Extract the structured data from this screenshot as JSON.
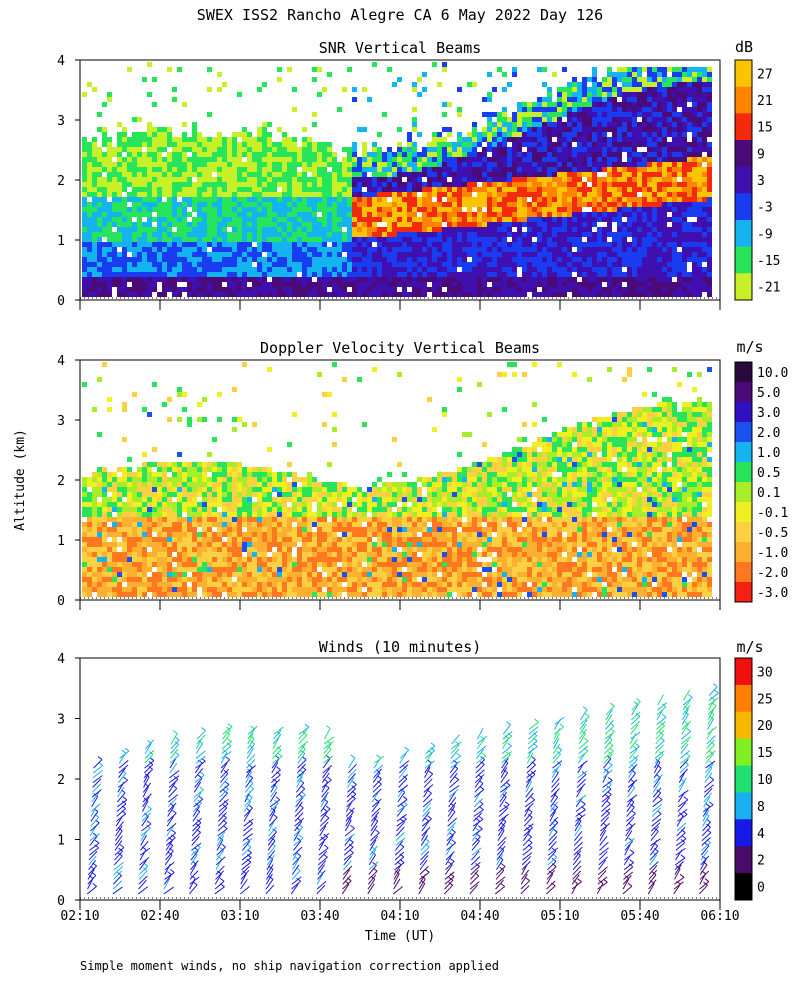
{
  "title": "SWEX ISS2 Rancho Alegre CA   6 May 2022 Day 126",
  "footnote": "Simple moment winds, no ship navigation correction applied",
  "y_axis_label": "Altitude (km)",
  "x_axis_label": "Time (UT)",
  "x_ticks": [
    "02:10",
    "02:40",
    "03:10",
    "03:40",
    "04:10",
    "04:40",
    "05:10",
    "05:40",
    "06:10"
  ],
  "chart_data": [
    {
      "type": "heatmap",
      "title": "SNR Vertical Beams",
      "unit": "dB",
      "xlabel": "",
      "ylabel": "Altitude (km)",
      "ylim": [
        0,
        4
      ],
      "yticks": [
        "0",
        "1",
        "2",
        "3",
        "4"
      ],
      "colorbar": {
        "labels": [
          "27",
          "21",
          "15",
          "9",
          "3",
          "-3",
          "-9",
          "-15",
          "-21"
        ],
        "colors": [
          "#fbc400",
          "#ff8400",
          "#f42a0c",
          "#4a0a78",
          "#3f0fb0",
          "#1a3cf0",
          "#14b4f0",
          "#28e45a",
          "#c8f028"
        ]
      }
    },
    {
      "type": "heatmap",
      "title": "Doppler Velocity Vertical Beams",
      "unit": "m/s",
      "xlabel": "",
      "ylabel": "Altitude (km)",
      "ylim": [
        0,
        4
      ],
      "yticks": [
        "0",
        "1",
        "2",
        "3",
        "4"
      ],
      "colorbar": {
        "labels": [
          "10.0",
          "5.0",
          "3.0",
          "2.0",
          "1.0",
          "0.5",
          "0.1",
          "-0.1",
          "-0.5",
          "-1.0",
          "-2.0",
          "-3.0"
        ],
        "colors": [
          "#2a0a3a",
          "#4a0a78",
          "#3010c0",
          "#1a50f0",
          "#14b4f0",
          "#28e45a",
          "#a8ee28",
          "#f0f020",
          "#fcd040",
          "#fbb030",
          "#ff7820",
          "#f42010"
        ]
      }
    },
    {
      "type": "scatter",
      "title": "Winds (10 minutes)",
      "unit": "m/s",
      "xlabel": "Time (UT)",
      "ylabel": "Altitude (km)",
      "ylim": [
        0,
        4
      ],
      "yticks": [
        "0",
        "1",
        "2",
        "3",
        "4"
      ],
      "colorbar": {
        "labels": [
          "30",
          "25",
          "20",
          "15",
          "10",
          "8",
          "4",
          "2",
          "0"
        ],
        "colors": [
          "#f01010",
          "#ff8000",
          "#f8b800",
          "#80f020",
          "#20e070",
          "#18b0f0",
          "#1818e8",
          "#4a0a6a",
          "#000000"
        ]
      }
    }
  ]
}
